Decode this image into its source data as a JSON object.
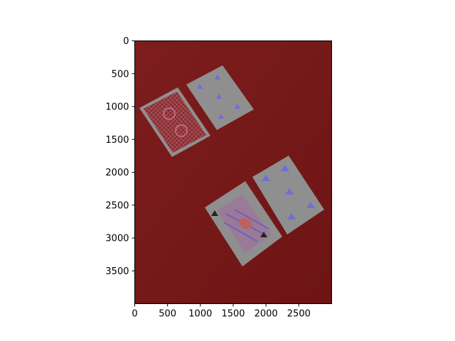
{
  "figure": {
    "image_description_colors": {
      "background": "#7a1a1a",
      "card_face": "#8f8f8f",
      "pip": "#6f6fd6",
      "card_back": "#8a2b2b"
    },
    "x_axis": {
      "ticks": [
        0,
        500,
        1000,
        1500,
        2000,
        2500
      ],
      "labels": [
        "0",
        "500",
        "1000",
        "1500",
        "2000",
        "2500"
      ],
      "range": [
        0,
        3000
      ]
    },
    "y_axis": {
      "ticks": [
        0,
        500,
        1000,
        1500,
        2000,
        2500,
        3000,
        3500
      ],
      "labels": [
        "0",
        "500",
        "1000",
        "1500",
        "2000",
        "2500",
        "3000",
        "3500"
      ],
      "range": [
        0,
        4000
      ],
      "inverted": true
    }
  }
}
